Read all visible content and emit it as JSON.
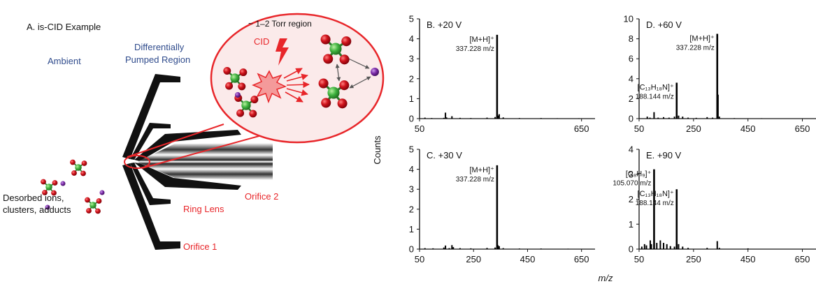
{
  "panel_a": {
    "title": "A. is-CID Example",
    "ambient": "Ambient",
    "diff_line1": "Differentially",
    "diff_line2": "Pumped Region",
    "torr": "~ 1–2 Torr region",
    "cid": "CID",
    "desorbed_line1": "Desorbed ions,",
    "desorbed_line2": "clusters, adducts",
    "ring_lens": "Ring Lens",
    "orifice1": "Orifice 1",
    "orifice2": "Orifice 2",
    "colors": {
      "label_blue": "#2f4b8c",
      "label_red": "#e8262a",
      "molecule_green": "#3fb23f",
      "molecule_red": "#c8101a",
      "ion_purple": "#7a2aa8"
    }
  },
  "shared": {
    "ylabel": "Counts",
    "xlabel": "m/z"
  },
  "chart_data": [
    {
      "type": "bar",
      "title": "B. +20 V",
      "xlim": [
        50,
        700
      ],
      "xticks": [
        50,
        650
      ],
      "ylim": [
        0,
        5
      ],
      "yticks": [
        0,
        1,
        2,
        3,
        4,
        5
      ],
      "peaks": [
        [
          70,
          0.05
        ],
        [
          95,
          0.03
        ],
        [
          140,
          0.04
        ],
        [
          146,
          0.3
        ],
        [
          150,
          0.06
        ],
        [
          170,
          0.12
        ],
        [
          200,
          0.04
        ],
        [
          240,
          0.03
        ],
        [
          300,
          0.05
        ],
        [
          330,
          0.08
        ],
        [
          337.2,
          4.2
        ],
        [
          340,
          0.15
        ],
        [
          345,
          0.22
        ],
        [
          360,
          0.06
        ],
        [
          420,
          0.03
        ],
        [
          500,
          0.03
        ],
        [
          560,
          0.02
        ],
        [
          640,
          0.02
        ]
      ],
      "annotations": [
        {
          "x": 337.228,
          "y": 4.2,
          "line1": "[M+H]⁺",
          "line2": "337.228 m/z"
        }
      ]
    },
    {
      "type": "bar",
      "title": "D. +60 V",
      "xlim": [
        50,
        700
      ],
      "xticks": [
        50,
        250,
        450,
        650
      ],
      "ylim": [
        0,
        10
      ],
      "yticks": [
        0,
        2,
        4,
        6,
        8,
        10
      ],
      "peaks": [
        [
          80,
          0.2
        ],
        [
          90,
          0.1
        ],
        [
          105,
          0.65
        ],
        [
          120,
          0.1
        ],
        [
          140,
          0.15
        ],
        [
          160,
          0.1
        ],
        [
          180,
          0.2
        ],
        [
          188.1,
          3.6
        ],
        [
          195,
          0.3
        ],
        [
          210,
          0.2
        ],
        [
          230,
          0.1
        ],
        [
          260,
          0.08
        ],
        [
          300,
          0.15
        ],
        [
          320,
          0.1
        ],
        [
          337.2,
          8.5
        ],
        [
          340,
          2.4
        ],
        [
          345,
          0.2
        ],
        [
          400,
          0.05
        ],
        [
          500,
          0.04
        ]
      ],
      "annotations": [
        {
          "x": 188.144,
          "y": 3.6,
          "line1": "[C₁₃H₁₈N]⁺",
          "line2": "188.144 m/z"
        },
        {
          "x": 337.228,
          "y": 8.5,
          "line1": "[M+H]⁺",
          "line2": "337.228 m/z"
        }
      ]
    },
    {
      "type": "bar",
      "title": "C. +30 V",
      "xlim": [
        50,
        700
      ],
      "xticks": [
        50,
        250,
        450,
        650
      ],
      "ylim": [
        0,
        5
      ],
      "yticks": [
        0,
        1,
        2,
        3,
        4,
        5
      ],
      "peaks": [
        [
          70,
          0.05
        ],
        [
          100,
          0.04
        ],
        [
          140,
          0.08
        ],
        [
          146,
          0.18
        ],
        [
          160,
          0.05
        ],
        [
          170,
          0.2
        ],
        [
          175,
          0.1
        ],
        [
          200,
          0.05
        ],
        [
          240,
          0.04
        ],
        [
          300,
          0.06
        ],
        [
          330,
          0.08
        ],
        [
          337.2,
          4.2
        ],
        [
          340,
          0.2
        ],
        [
          345,
          0.15
        ],
        [
          360,
          0.05
        ],
        [
          420,
          0.03
        ],
        [
          500,
          0.03
        ],
        [
          600,
          0.02
        ]
      ],
      "annotations": [
        {
          "x": 337.228,
          "y": 4.2,
          "line1": "[M+H]⁺",
          "line2": "337.228 m/z"
        }
      ]
    },
    {
      "type": "bar",
      "title": "E. +90 V",
      "xlim": [
        50,
        700
      ],
      "xticks": [
        50,
        250,
        450,
        650
      ],
      "ylim": [
        0,
        4
      ],
      "yticks": [
        0,
        1,
        2,
        3,
        4
      ],
      "peaks": [
        [
          60,
          0.1
        ],
        [
          70,
          0.2
        ],
        [
          77,
          0.15
        ],
        [
          91,
          0.35
        ],
        [
          95,
          0.2
        ],
        [
          105.07,
          3.2
        ],
        [
          115,
          0.25
        ],
        [
          128,
          0.35
        ],
        [
          140,
          0.25
        ],
        [
          152,
          0.2
        ],
        [
          165,
          0.12
        ],
        [
          180,
          0.1
        ],
        [
          188.1,
          2.4
        ],
        [
          195,
          0.2
        ],
        [
          210,
          0.1
        ],
        [
          230,
          0.05
        ],
        [
          300,
          0.05
        ],
        [
          337.2,
          0.32
        ],
        [
          345,
          0.05
        ],
        [
          450,
          0.03
        ]
      ],
      "annotations": [
        {
          "x": 105.07,
          "y": 3.2,
          "line1": "[C₈H₉]⁺",
          "line2": "105.070 m/z"
        },
        {
          "x": 188.144,
          "y": 2.4,
          "line1": "[C₁₃H₁₈N]⁺",
          "line2": "188.144 m/z"
        }
      ]
    }
  ]
}
